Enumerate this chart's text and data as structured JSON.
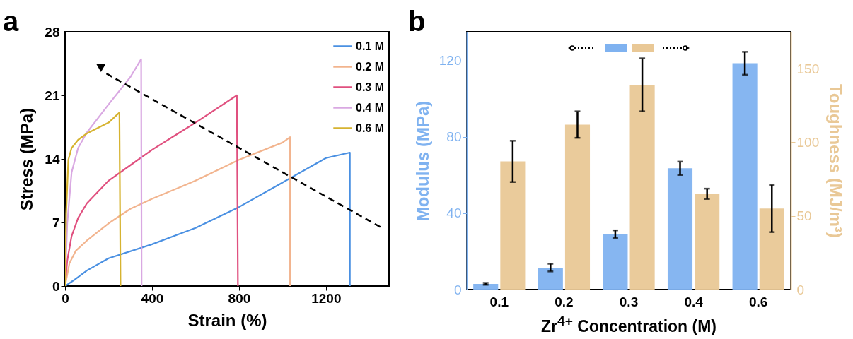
{
  "chart_data": [
    {
      "type": "line",
      "xlabel": "Strain (%)",
      "ylabel": "Stress (MPa)",
      "xlim": [
        0,
        1490
      ],
      "xticks": [
        0,
        400,
        800,
        1200
      ],
      "ylim": [
        0,
        28
      ],
      "yticks": [
        0,
        7,
        14,
        21,
        28
      ],
      "legend": "top right",
      "grid": false,
      "annotations": [
        "a"
      ],
      "series": [
        {
          "name": "0.1 M",
          "color": "#4a90e2",
          "x": [
            0,
            50,
            100,
            200,
            400,
            600,
            800,
            1000,
            1200,
            1310,
            1310
          ],
          "values": [
            0,
            0.8,
            1.7,
            3.05,
            4.6,
            6.4,
            8.7,
            11.4,
            14.1,
            14.7,
            0
          ]
        },
        {
          "name": "0.2 M",
          "color": "#f2b48e",
          "x": [
            0,
            20,
            50,
            100,
            200,
            300,
            400,
            600,
            800,
            1000,
            1035,
            1035
          ],
          "values": [
            0,
            2.5,
            3.9,
            5.0,
            6.9,
            8.5,
            9.6,
            11.6,
            13.9,
            15.8,
            16.4,
            0
          ]
        },
        {
          "name": "0.3 M",
          "color": "#e0507f",
          "x": [
            0,
            10,
            30,
            60,
            100,
            200,
            300,
            400,
            600,
            790,
            795
          ],
          "values": [
            0,
            2.8,
            5.5,
            7.5,
            9.1,
            11.6,
            13.3,
            15.0,
            18.0,
            21.0,
            0
          ]
        },
        {
          "name": "0.4 M",
          "color": "#d9a8e2",
          "x": [
            0,
            10,
            30,
            60,
            100,
            200,
            300,
            350,
            352
          ],
          "values": [
            0,
            6.9,
            12.5,
            15.2,
            16.9,
            20.0,
            23.0,
            25.0,
            0
          ]
        },
        {
          "name": "0.6 M",
          "color": "#d6b330",
          "x": [
            0,
            5,
            15,
            30,
            60,
            100,
            200,
            250,
            255
          ],
          "values": [
            0,
            8,
            13.9,
            15.2,
            16.1,
            16.8,
            18.0,
            19.1,
            0
          ]
        }
      ]
    },
    {
      "type": "bar",
      "categories": [
        "0.1",
        "0.2",
        "0.3",
        "0.4",
        "0.6"
      ],
      "xlabel": "Zr$^{4+}$ Concentration (M)",
      "ylabel": "Modulus (MPa)",
      "y2label": "Toughness (MJ/m³)",
      "ylim": [
        0,
        135
      ],
      "yticks": [
        0,
        40,
        80,
        120
      ],
      "y2lim": [
        0,
        175
      ],
      "y2ticks": [
        0,
        50,
        100,
        150
      ],
      "grid": false,
      "annotations": [
        "b"
      ],
      "series": [
        {
          "color": "#7fb2f0",
          "values": [
            3,
            11.5,
            29,
            63.5,
            118.5
          ],
          "errors": [
            0.5,
            2,
            2,
            3.5,
            6
          ]
        },
        {
          "color": "#e9c896",
          "axis": "y2",
          "values": [
            87,
            112,
            139,
            65,
            55
          ],
          "errors": [
            14,
            9,
            18,
            3.5,
            16
          ]
        }
      ]
    }
  ]
}
